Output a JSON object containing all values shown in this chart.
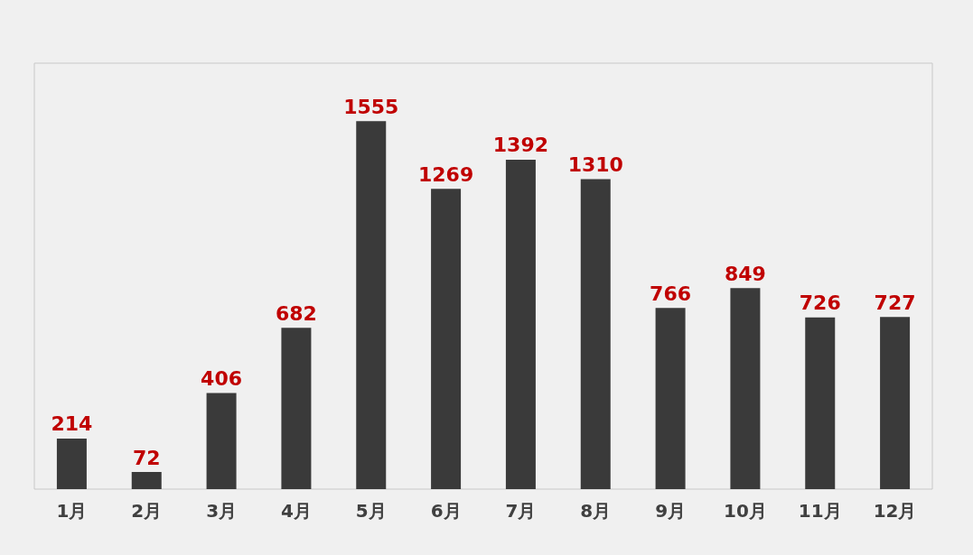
{
  "chart_data": {
    "type": "bar",
    "categories": [
      "1月",
      "2月",
      "3月",
      "4月",
      "5月",
      "6月",
      "7月",
      "8月",
      "9月",
      "10月",
      "11月",
      "12月"
    ],
    "values": [
      214,
      72,
      406,
      682,
      1555,
      1269,
      1392,
      1310,
      766,
      849,
      726,
      727
    ],
    "color": "#3a3a3a",
    "data_labels": true,
    "grid": false
  }
}
